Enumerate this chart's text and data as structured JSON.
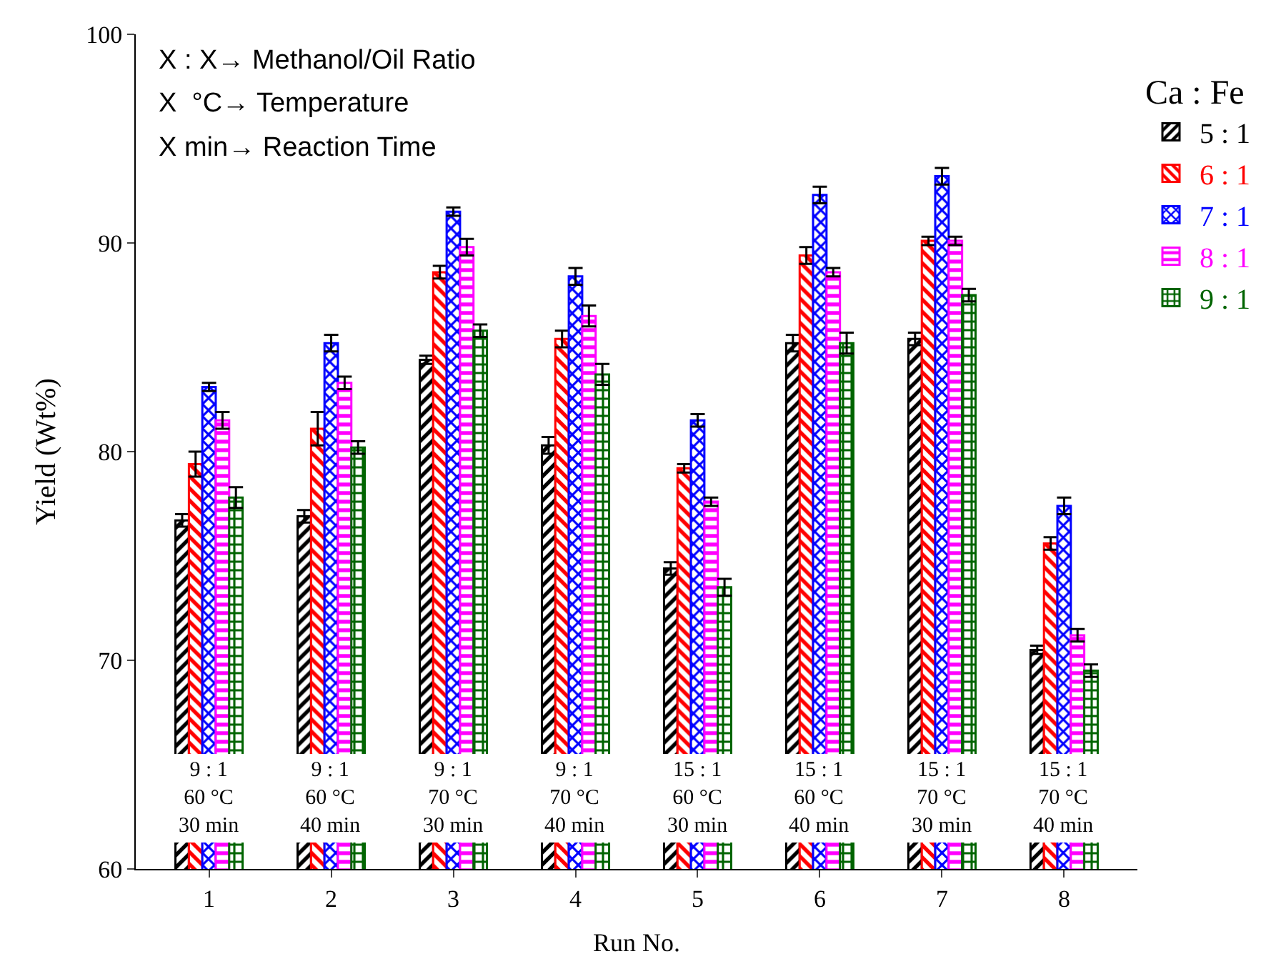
{
  "chart_data": {
    "type": "bar",
    "xlabel": "Run No.",
    "ylabel": "Yield (Wt%)",
    "legend_title": "Ca : Fe",
    "categories": [
      "1",
      "2",
      "3",
      "4",
      "5",
      "6",
      "7",
      "8"
    ],
    "series": [
      {
        "name": "5 : 1",
        "color": "#000000",
        "values": [
          76.7,
          76.9,
          84.4,
          80.3,
          74.4,
          85.2,
          85.4,
          70.5
        ],
        "errors": [
          0.3,
          0.3,
          0.2,
          0.4,
          0.3,
          0.4,
          0.3,
          0.2
        ]
      },
      {
        "name": "6 : 1",
        "color": "#ff0000",
        "values": [
          79.4,
          81.1,
          88.6,
          85.4,
          79.2,
          89.4,
          90.1,
          75.6
        ],
        "errors": [
          0.6,
          0.8,
          0.3,
          0.4,
          0.2,
          0.4,
          0.2,
          0.3
        ]
      },
      {
        "name": "7 : 1",
        "color": "#0000ff",
        "values": [
          83.1,
          85.2,
          91.5,
          88.4,
          81.5,
          92.3,
          93.2,
          77.4
        ],
        "errors": [
          0.2,
          0.4,
          0.2,
          0.4,
          0.3,
          0.4,
          0.4,
          0.4
        ]
      },
      {
        "name": "8 : 1",
        "color": "#ff00ff",
        "values": [
          81.5,
          83.3,
          89.8,
          86.5,
          77.6,
          88.6,
          90.1,
          71.2
        ],
        "errors": [
          0.4,
          0.3,
          0.4,
          0.5,
          0.2,
          0.2,
          0.2,
          0.3
        ]
      },
      {
        "name": "9 : 1",
        "color": "#006400",
        "values": [
          77.8,
          80.2,
          85.8,
          83.7,
          73.5,
          85.2,
          87.5,
          69.5
        ],
        "errors": [
          0.5,
          0.3,
          0.3,
          0.5,
          0.4,
          0.5,
          0.3,
          0.3
        ]
      }
    ],
    "ylim": [
      60,
      100
    ],
    "yticks": [
      60,
      70,
      80,
      90,
      100
    ],
    "legend": "top right",
    "annotations": [
      "X : X→ Methanol/Oil Ratio",
      "X  °C→ Temperature",
      "X min→ Reaction Time",
      {
        "text": "9 : 1\n60 °C\n30 min",
        "x": "1",
        "y": 63.4
      },
      {
        "text": "9 : 1\n60 °C\n40 min",
        "x": "2",
        "y": 63.4
      },
      {
        "text": "9 : 1\n70 °C\n30 min",
        "x": "3",
        "y": 63.4
      },
      {
        "text": "9 : 1\n70 °C\n40 min",
        "x": "4",
        "y": 63.4
      },
      {
        "text": "15 : 1\n60 °C\n30 min",
        "x": "5",
        "y": 63.4
      },
      {
        "text": "15 : 1\n60 °C\n40 min",
        "x": "6",
        "y": 63.4
      },
      {
        "text": "15 : 1\n70 °C\n30 min",
        "x": "7",
        "y": 63.4
      },
      {
        "text": "15 : 1\n70 °C\n40 min",
        "x": "8",
        "y": 63.4
      }
    ]
  }
}
